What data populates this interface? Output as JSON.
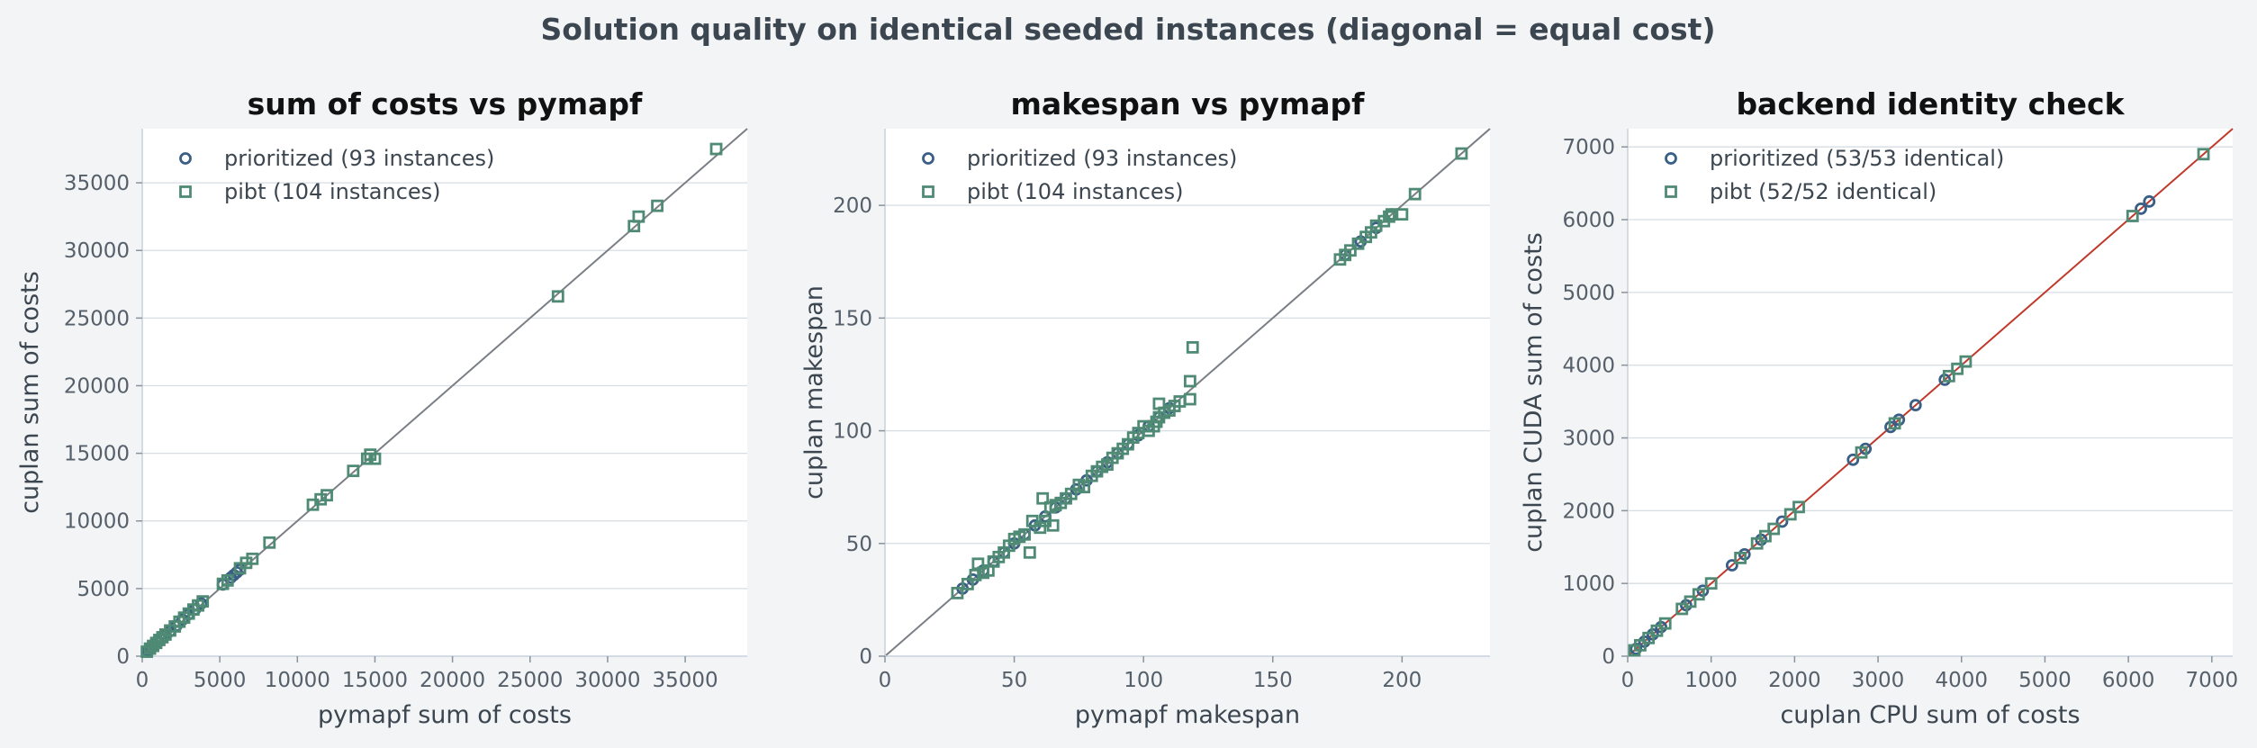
{
  "figure": {
    "suptitle": "Solution quality on identical seeded instances (diagonal = equal cost)"
  },
  "colors": {
    "background": "#f2f4f6",
    "plot_area": "#ffffff",
    "prioritized": "#3a5f86",
    "pibt": "#4e8a74",
    "diagonal": "#7a7f85",
    "diagonal_backend": "#c0392b"
  },
  "chart_data": [
    {
      "type": "scatter",
      "title": "sum of costs vs pymapf",
      "xlabel": "pymapf sum of costs",
      "ylabel": "cuplan sum of costs",
      "xlim": [
        0,
        39000
      ],
      "ylim": [
        0,
        39000
      ],
      "xticks": [
        0,
        5000,
        10000,
        15000,
        20000,
        25000,
        30000,
        35000
      ],
      "yticks": [
        0,
        5000,
        10000,
        15000,
        20000,
        25000,
        30000,
        35000
      ],
      "grid": "horizontal",
      "diagonal": true,
      "legend_position": "upper-left",
      "series": [
        {
          "name": "prioritized (93 instances)",
          "marker": "circle",
          "points": [
            [
              400,
              420
            ],
            [
              600,
              630
            ],
            [
              800,
              830
            ],
            [
              1000,
              1050
            ],
            [
              1200,
              1250
            ],
            [
              1500,
              1560
            ],
            [
              1800,
              1850
            ],
            [
              2200,
              2250
            ],
            [
              2600,
              2700
            ],
            [
              3000,
              3100
            ],
            [
              3400,
              3450
            ],
            [
              3800,
              3900
            ],
            [
              5200,
              5300
            ],
            [
              5700,
              5800
            ],
            [
              5900,
              6000
            ],
            [
              6100,
              6200
            ],
            [
              6300,
              6400
            ]
          ]
        },
        {
          "name": "pibt (104 instances)",
          "marker": "square",
          "points": [
            [
              300,
              330
            ],
            [
              500,
              560
            ],
            [
              700,
              760
            ],
            [
              900,
              980
            ],
            [
              1100,
              1200
            ],
            [
              1300,
              1400
            ],
            [
              1500,
              1600
            ],
            [
              1800,
              1900
            ],
            [
              2100,
              2200
            ],
            [
              2400,
              2550
            ],
            [
              2700,
              2850
            ],
            [
              3000,
              3150
            ],
            [
              3300,
              3450
            ],
            [
              3600,
              3750
            ],
            [
              3900,
              4050
            ],
            [
              5200,
              5350
            ],
            [
              5500,
              5600
            ],
            [
              6300,
              6500
            ],
            [
              6700,
              6900
            ],
            [
              7100,
              7200
            ],
            [
              8200,
              8400
            ],
            [
              11000,
              11200
            ],
            [
              11500,
              11600
            ],
            [
              11900,
              11900
            ],
            [
              13600,
              13700
            ],
            [
              14500,
              14600
            ],
            [
              14700,
              14900
            ],
            [
              15000,
              14600
            ],
            [
              26800,
              26600
            ],
            [
              31700,
              31800
            ],
            [
              32000,
              32500
            ],
            [
              33200,
              33300
            ],
            [
              37000,
              37500
            ]
          ]
        }
      ]
    },
    {
      "type": "scatter",
      "title": "makespan vs pymapf",
      "xlabel": "pymapf makespan",
      "ylabel": "cuplan makespan",
      "xlim": [
        0,
        234
      ],
      "ylim": [
        0,
        234
      ],
      "xticks": [
        0,
        50,
        100,
        150,
        200
      ],
      "yticks": [
        0,
        50,
        100,
        150,
        200
      ],
      "grid": "horizontal",
      "diagonal": true,
      "legend_position": "upper-left",
      "series": [
        {
          "name": "prioritized (93 instances)",
          "marker": "circle",
          "points": [
            [
              30,
              30
            ],
            [
              34,
              34
            ],
            [
              38,
              38
            ],
            [
              42,
              42
            ],
            [
              46,
              46
            ],
            [
              50,
              50
            ],
            [
              54,
              54
            ],
            [
              58,
              58
            ],
            [
              62,
              62
            ],
            [
              66,
              66
            ],
            [
              70,
              70
            ],
            [
              74,
              74
            ],
            [
              78,
              78
            ],
            [
              82,
              82
            ],
            [
              86,
              86
            ],
            [
              90,
              90
            ],
            [
              94,
              94
            ],
            [
              98,
              98
            ],
            [
              102,
              102
            ],
            [
              106,
              106
            ],
            [
              110,
              110
            ],
            [
              178,
              178
            ],
            [
              184,
              184
            ],
            [
              190,
              190
            ],
            [
              196,
              196
            ]
          ]
        },
        {
          "name": "pibt (104 instances)",
          "marker": "square",
          "points": [
            [
              28,
              28
            ],
            [
              32,
              32
            ],
            [
              35,
              36
            ],
            [
              36,
              41
            ],
            [
              38,
              37
            ],
            [
              40,
              38
            ],
            [
              42,
              42
            ],
            [
              44,
              44
            ],
            [
              46,
              46
            ],
            [
              48,
              49
            ],
            [
              50,
              52
            ],
            [
              52,
              53
            ],
            [
              54,
              54
            ],
            [
              56,
              46
            ],
            [
              57,
              60
            ],
            [
              60,
              57
            ],
            [
              61,
              70
            ],
            [
              62,
              60
            ],
            [
              64,
              66
            ],
            [
              65,
              58
            ],
            [
              66,
              67
            ],
            [
              68,
              68
            ],
            [
              70,
              70
            ],
            [
              72,
              72
            ],
            [
              75,
              76
            ],
            [
              77,
              75
            ],
            [
              80,
              80
            ],
            [
              82,
              82
            ],
            [
              84,
              84
            ],
            [
              86,
              85
            ],
            [
              88,
              88
            ],
            [
              90,
              90
            ],
            [
              92,
              92
            ],
            [
              94,
              94
            ],
            [
              96,
              97
            ],
            [
              98,
              99
            ],
            [
              100,
              102
            ],
            [
              102,
              100
            ],
            [
              104,
              102
            ],
            [
              105,
              104
            ],
            [
              106,
              106
            ],
            [
              108,
              108
            ],
            [
              110,
              109
            ],
            [
              112,
              111
            ],
            [
              114,
              113
            ],
            [
              118,
              114
            ],
            [
              118,
              122
            ],
            [
              119,
              137
            ],
            [
              106,
              112
            ],
            [
              176,
              176
            ],
            [
              178,
              178
            ],
            [
              180,
              180
            ],
            [
              183,
              183
            ],
            [
              186,
              186
            ],
            [
              188,
              188
            ],
            [
              190,
              191
            ],
            [
              193,
              193
            ],
            [
              195,
              195
            ],
            [
              196,
              196
            ],
            [
              200,
              196
            ],
            [
              205,
              205
            ],
            [
              223,
              223
            ]
          ]
        }
      ]
    },
    {
      "type": "scatter",
      "title": "backend identity check",
      "xlabel": "cuplan CPU sum of costs",
      "ylabel": "cuplan CUDA sum of costs",
      "xlim": [
        0,
        7250
      ],
      "ylim": [
        0,
        7250
      ],
      "xticks": [
        0,
        1000,
        2000,
        3000,
        4000,
        5000,
        6000,
        7000
      ],
      "yticks": [
        0,
        1000,
        2000,
        3000,
        4000,
        5000,
        6000,
        7000
      ],
      "grid": "horizontal",
      "diagonal": true,
      "legend_position": "upper-left",
      "series": [
        {
          "name": "prioritized (53/53 identical)",
          "marker": "circle",
          "points": [
            [
              100,
              100
            ],
            [
              200,
              200
            ],
            [
              300,
              300
            ],
            [
              400,
              400
            ],
            [
              700,
              700
            ],
            [
              900,
              900
            ],
            [
              1250,
              1250
            ],
            [
              1400,
              1400
            ],
            [
              1600,
              1600
            ],
            [
              1850,
              1850
            ],
            [
              2700,
              2700
            ],
            [
              2850,
              2850
            ],
            [
              3150,
              3150
            ],
            [
              3250,
              3250
            ],
            [
              3450,
              3450
            ],
            [
              3800,
              3800
            ],
            [
              6150,
              6150
            ],
            [
              6250,
              6250
            ]
          ]
        },
        {
          "name": "pibt (52/52 identical)",
          "marker": "square",
          "points": [
            [
              80,
              80
            ],
            [
              150,
              150
            ],
            [
              250,
              250
            ],
            [
              350,
              350
            ],
            [
              450,
              450
            ],
            [
              650,
              650
            ],
            [
              750,
              750
            ],
            [
              850,
              850
            ],
            [
              1000,
              1000
            ],
            [
              1350,
              1350
            ],
            [
              1550,
              1550
            ],
            [
              1650,
              1650
            ],
            [
              1750,
              1750
            ],
            [
              1950,
              1950
            ],
            [
              2050,
              2050
            ],
            [
              2800,
              2800
            ],
            [
              3200,
              3200
            ],
            [
              3850,
              3850
            ],
            [
              3950,
              3950
            ],
            [
              4050,
              4050
            ],
            [
              6050,
              6050
            ],
            [
              6900,
              6900
            ]
          ]
        }
      ]
    }
  ]
}
